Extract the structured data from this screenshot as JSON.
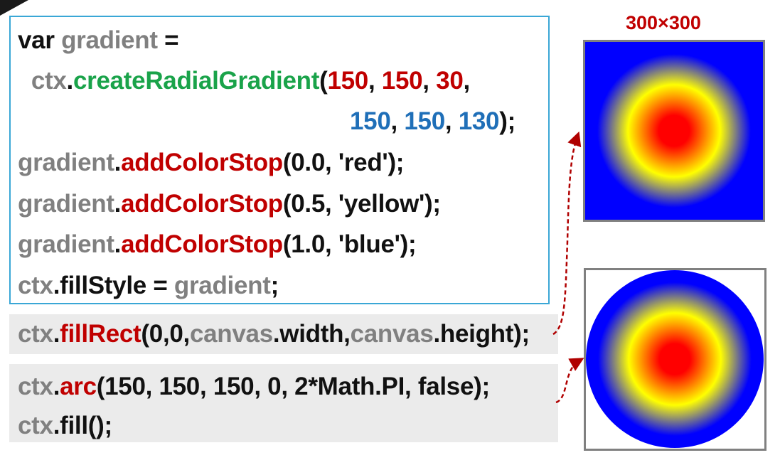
{
  "code_block": {
    "lines": [
      [
        {
          "t": "var ",
          "c": "c-kw"
        },
        {
          "t": "gradient",
          "c": "c-var"
        },
        {
          "t": " =",
          "c": "c-op"
        }
      ],
      [
        {
          "t": "  ",
          "c": "c-op"
        },
        {
          "t": "ctx",
          "c": "c-var"
        },
        {
          "t": ".",
          "c": "c-op"
        },
        {
          "t": "createRadialGradient",
          "c": "c-method-g"
        },
        {
          "t": "(",
          "c": "c-op"
        },
        {
          "t": "150",
          "c": "c-num-r"
        },
        {
          "t": ", ",
          "c": "c-op"
        },
        {
          "t": "150",
          "c": "c-num-r"
        },
        {
          "t": ", ",
          "c": "c-op"
        },
        {
          "t": "30",
          "c": "c-num-r"
        },
        {
          "t": ",",
          "c": "c-op"
        }
      ],
      [
        {
          "t": "150",
          "c": "c-num-b"
        },
        {
          "t": ", ",
          "c": "c-op"
        },
        {
          "t": "150",
          "c": "c-num-b"
        },
        {
          "t": ", ",
          "c": "c-op"
        },
        {
          "t": "130",
          "c": "c-num-b"
        },
        {
          "t": ");",
          "c": "c-op"
        }
      ],
      [
        {
          "t": "gradient",
          "c": "c-var"
        },
        {
          "t": ".",
          "c": "c-op"
        },
        {
          "t": "addColorStop",
          "c": "c-method-r"
        },
        {
          "t": "(0.0, 'red');",
          "c": "c-op"
        }
      ],
      [
        {
          "t": "gradient",
          "c": "c-var"
        },
        {
          "t": ".",
          "c": "c-op"
        },
        {
          "t": "addColorStop",
          "c": "c-method-r"
        },
        {
          "t": "(0.5, 'yellow');",
          "c": "c-op"
        }
      ],
      [
        {
          "t": "gradient",
          "c": "c-var"
        },
        {
          "t": ".",
          "c": "c-op"
        },
        {
          "t": "addColorStop",
          "c": "c-method-r"
        },
        {
          "t": "(1.0, 'blue');",
          "c": "c-op"
        }
      ],
      [
        {
          "t": "ctx",
          "c": "c-var"
        },
        {
          "t": ".",
          "c": "c-op"
        },
        {
          "t": "fillStyle = ",
          "c": "c-op"
        },
        {
          "t": "gradient",
          "c": "c-var"
        },
        {
          "t": ";",
          "c": "c-op"
        }
      ]
    ]
  },
  "fill_rect_block": {
    "lines": [
      [
        {
          "t": "ctx",
          "c": "c-var"
        },
        {
          "t": ".",
          "c": "c-op"
        },
        {
          "t": "fillRect",
          "c": "c-method-r"
        },
        {
          "t": "(0,0,",
          "c": "c-op"
        },
        {
          "t": "canvas",
          "c": "c-var"
        },
        {
          "t": ".width,",
          "c": "c-op"
        },
        {
          "t": "canvas",
          "c": "c-var"
        },
        {
          "t": ".height);",
          "c": "c-op"
        }
      ]
    ]
  },
  "arc_block": {
    "lines": [
      [
        {
          "t": "ctx",
          "c": "c-var"
        },
        {
          "t": ".",
          "c": "c-op"
        },
        {
          "t": "arc",
          "c": "c-method-r"
        },
        {
          "t": "(150, 150, 150, 0, 2*Math.PI, false);",
          "c": "c-op"
        }
      ],
      [
        {
          "t": "ctx",
          "c": "c-var"
        },
        {
          "t": ".",
          "c": "c-op"
        },
        {
          "t": "fill();",
          "c": "c-op"
        }
      ]
    ]
  },
  "canvas_size_label": "300×300",
  "colors": {
    "gradient_stop_0": "#ff0000",
    "gradient_stop_05": "#ffff00",
    "gradient_stop_1": "#0000ff",
    "box_border": "#3aa7d6",
    "arrow": "#b00000",
    "gray_panel": "#ebebeb"
  }
}
